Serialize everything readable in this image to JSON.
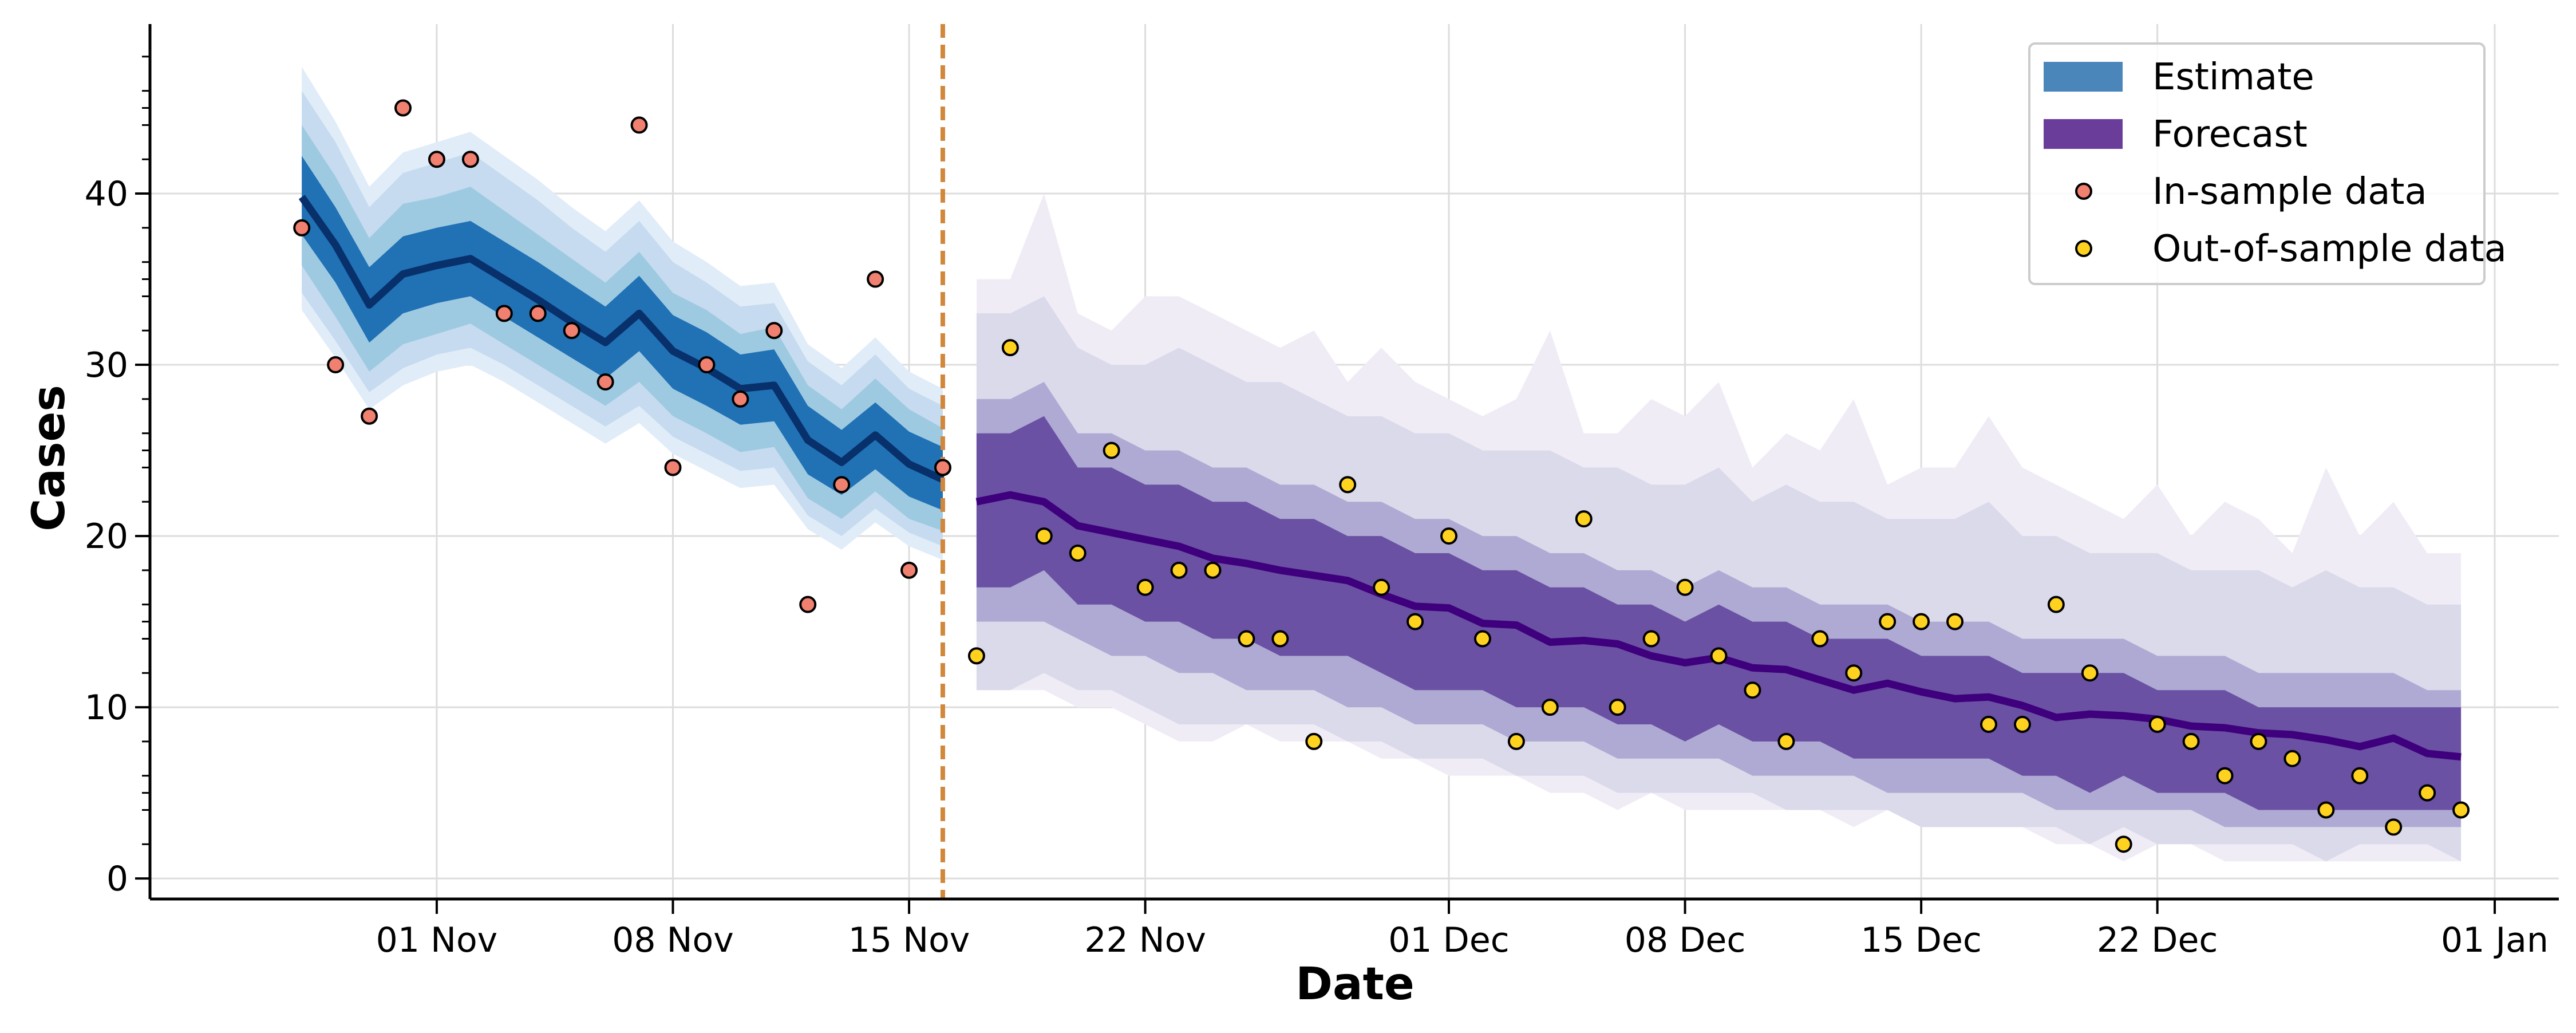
{
  "chart_data": {
    "type": "line",
    "title": "",
    "xlabel": "Date",
    "ylabel": "Cases",
    "ylim": [
      -1.2,
      49.9
    ],
    "xlim_days": [
      -8.5,
      62.9
    ],
    "x_reference_date": "2023-11-01",
    "x_ticks": [
      {
        "day": 0,
        "label": "01 Nov"
      },
      {
        "day": 7,
        "label": "08 Nov"
      },
      {
        "day": 14,
        "label": "15 Nov"
      },
      {
        "day": 21,
        "label": "22 Nov"
      },
      {
        "day": 30,
        "label": "01 Dec"
      },
      {
        "day": 37,
        "label": "08 Dec"
      },
      {
        "day": 44,
        "label": "15 Dec"
      },
      {
        "day": 51,
        "label": "22 Dec"
      },
      {
        "day": 61,
        "label": "01 Jan"
      }
    ],
    "y_ticks": [
      0,
      10,
      20,
      30,
      40
    ],
    "grid": true,
    "forecast_start_day": 15,
    "legend": {
      "position": "top-right",
      "entries": [
        {
          "label": "Estimate",
          "kind": "patch",
          "color": "#4a86ba"
        },
        {
          "label": "Forecast",
          "kind": "patch",
          "color": "#6a3d9a"
        },
        {
          "label": "In-sample data",
          "kind": "marker",
          "color": "#f08070"
        },
        {
          "label": "Out-of-sample data",
          "kind": "marker",
          "color": "#ffd21f"
        }
      ]
    },
    "estimate": {
      "name": "Estimate",
      "x": [
        -4,
        -3,
        -2,
        -1,
        0,
        1,
        2,
        3,
        4,
        5,
        6,
        7,
        8,
        9,
        10,
        11,
        12,
        13,
        14,
        15
      ],
      "median": [
        39.8,
        37.0,
        33.5,
        35.3,
        35.8,
        36.2,
        35.0,
        33.8,
        32.5,
        31.3,
        33.0,
        30.8,
        29.8,
        28.6,
        28.8,
        25.6,
        24.3,
        25.9,
        24.2,
        23.3
      ],
      "colors": [
        "#e0ecf8",
        "#c6dbef",
        "#9ecae1",
        "#2171b5"
      ],
      "bands": [
        {
          "lower": [
            33.2,
            30.4,
            27.4,
            28.8,
            29.6,
            30.0,
            29.0,
            27.8,
            26.6,
            25.4,
            26.6,
            24.8,
            23.8,
            22.8,
            23.0,
            20.4,
            19.2,
            20.8,
            19.4,
            18.6
          ],
          "upper": [
            47.4,
            44.2,
            40.4,
            42.4,
            43.0,
            43.6,
            42.2,
            40.8,
            39.2,
            37.8,
            39.6,
            37.2,
            36.0,
            34.6,
            34.8,
            31.2,
            29.8,
            31.6,
            29.6,
            28.6
          ]
        },
        {
          "lower": [
            34.2,
            31.4,
            28.4,
            29.8,
            30.6,
            31.0,
            30.0,
            28.8,
            27.6,
            26.4,
            27.6,
            25.8,
            24.8,
            23.8,
            24.0,
            21.2,
            20.0,
            21.6,
            20.2,
            19.4
          ],
          "upper": [
            46.0,
            43.0,
            39.2,
            41.2,
            41.8,
            42.4,
            41.0,
            39.6,
            38.0,
            36.6,
            38.4,
            36.0,
            34.8,
            33.4,
            33.6,
            30.2,
            28.8,
            30.6,
            28.6,
            27.6
          ]
        },
        {
          "lower": [
            35.8,
            32.8,
            29.6,
            31.2,
            31.8,
            32.4,
            31.2,
            30.0,
            28.8,
            27.6,
            29.0,
            27.0,
            26.0,
            24.9,
            25.2,
            22.2,
            21.0,
            22.6,
            21.0,
            20.3
          ],
          "upper": [
            44.0,
            41.0,
            37.4,
            39.4,
            39.8,
            40.4,
            39.0,
            37.6,
            36.2,
            34.8,
            36.6,
            34.2,
            33.2,
            31.8,
            32.2,
            28.8,
            27.4,
            29.2,
            27.4,
            26.3
          ]
        },
        {
          "lower": [
            37.6,
            34.8,
            31.3,
            33.0,
            33.6,
            34.0,
            32.8,
            31.6,
            30.4,
            29.2,
            30.8,
            28.6,
            27.6,
            26.5,
            26.7,
            23.6,
            22.4,
            23.9,
            22.3,
            21.5
          ],
          "upper": [
            42.2,
            39.2,
            35.7,
            37.5,
            38.0,
            38.4,
            37.2,
            36.0,
            34.7,
            33.4,
            35.2,
            32.9,
            31.9,
            30.6,
            30.9,
            27.6,
            26.2,
            27.8,
            26.1,
            25.2
          ]
        }
      ]
    },
    "forecast": {
      "name": "Forecast",
      "x": [
        16,
        17,
        18,
        19,
        20,
        21,
        22,
        23,
        24,
        25,
        26,
        27,
        28,
        29,
        30,
        31,
        32,
        33,
        34,
        35,
        36,
        37,
        38,
        39,
        40,
        41,
        42,
        43,
        44,
        45,
        46,
        47,
        48,
        49,
        50,
        51,
        52,
        53,
        54,
        55,
        56,
        57,
        58,
        59,
        60
      ],
      "median": [
        22.0,
        22.4,
        22.0,
        20.6,
        20.2,
        19.8,
        19.4,
        18.7,
        18.4,
        18.0,
        17.7,
        17.4,
        16.6,
        15.9,
        15.8,
        14.9,
        14.8,
        13.8,
        13.9,
        13.7,
        13.0,
        12.6,
        12.9,
        12.3,
        12.2,
        11.6,
        11.0,
        11.4,
        10.9,
        10.5,
        10.6,
        10.1,
        9.4,
        9.6,
        9.5,
        9.3,
        8.9,
        8.8,
        8.5,
        8.4,
        8.1,
        7.7,
        8.2,
        7.3,
        7.1
      ],
      "colors": [
        "#f0ecf6",
        "#dadaeb",
        "#aeaad3",
        "#6a51a3"
      ],
      "bands": [
        {
          "lower": [
            11.0,
            11.0,
            11.0,
            10.0,
            10.0,
            9.0,
            8.0,
            8.0,
            9.0,
            8.0,
            8.0,
            8.0,
            7.0,
            7.0,
            6.0,
            6.0,
            6.0,
            5.0,
            5.0,
            4.0,
            5.0,
            4.0,
            4.0,
            4.0,
            4.0,
            4.0,
            3.0,
            4.0,
            3.0,
            3.0,
            3.0,
            3.0,
            2.0,
            2.0,
            1.0,
            2.0,
            2.0,
            1.0,
            1.0,
            1.0,
            1.0,
            1.0,
            1.0,
            1.0,
            1.0
          ],
          "upper": [
            35.0,
            35.0,
            40.0,
            33.0,
            32.0,
            34.0,
            34.0,
            33.0,
            32.0,
            31.0,
            32.0,
            29.0,
            31.0,
            29.0,
            28.0,
            27.0,
            28.0,
            32.0,
            26.0,
            26.0,
            28.0,
            27.0,
            29.0,
            24.0,
            26.0,
            25.0,
            28.0,
            23.0,
            24.0,
            24.0,
            27.0,
            24.0,
            23.0,
            22.0,
            21.0,
            23.0,
            20.0,
            22.0,
            21.0,
            19.0,
            24.0,
            20.0,
            22.0,
            19.0,
            19.0
          ]
        },
        {
          "lower": [
            11.0,
            11.0,
            12.0,
            11.0,
            11.0,
            10.0,
            9.0,
            9.0,
            9.0,
            9.0,
            9.0,
            8.0,
            8.0,
            7.0,
            7.0,
            7.0,
            6.0,
            6.0,
            6.0,
            5.0,
            5.0,
            5.0,
            5.0,
            5.0,
            4.0,
            4.0,
            4.0,
            4.0,
            3.0,
            3.0,
            3.0,
            3.0,
            3.0,
            2.0,
            3.0,
            2.0,
            2.0,
            2.0,
            2.0,
            2.0,
            1.0,
            2.0,
            2.0,
            2.0,
            1.0
          ],
          "upper": [
            33.0,
            33.0,
            34.0,
            31.0,
            30.0,
            30.0,
            31.0,
            30.0,
            29.0,
            29.0,
            28.0,
            27.0,
            27.0,
            26.0,
            26.0,
            25.0,
            25.0,
            25.0,
            24.0,
            24.0,
            23.0,
            23.0,
            24.0,
            22.0,
            23.0,
            22.0,
            22.0,
            21.0,
            21.0,
            21.0,
            22.0,
            20.0,
            20.0,
            19.0,
            19.0,
            19.0,
            18.0,
            18.0,
            18.0,
            17.0,
            18.0,
            17.0,
            17.0,
            16.0,
            16.0
          ]
        },
        {
          "lower": [
            15.0,
            15.0,
            15.0,
            14.0,
            13.0,
            13.0,
            12.0,
            12.0,
            11.0,
            11.0,
            11.0,
            10.0,
            10.0,
            9.0,
            9.0,
            9.0,
            8.0,
            8.0,
            8.0,
            7.0,
            7.0,
            7.0,
            7.0,
            6.0,
            6.0,
            6.0,
            6.0,
            5.0,
            5.0,
            5.0,
            5.0,
            5.0,
            4.0,
            4.0,
            4.0,
            4.0,
            4.0,
            3.0,
            3.0,
            3.0,
            3.0,
            3.0,
            3.0,
            3.0,
            3.0
          ],
          "upper": [
            28.0,
            28.0,
            29.0,
            26.0,
            26.0,
            25.0,
            25.0,
            24.0,
            24.0,
            23.0,
            23.0,
            22.0,
            22.0,
            21.0,
            21.0,
            20.0,
            20.0,
            19.0,
            19.0,
            18.0,
            18.0,
            17.0,
            18.0,
            17.0,
            17.0,
            16.0,
            16.0,
            16.0,
            15.0,
            15.0,
            15.0,
            14.0,
            14.0,
            14.0,
            14.0,
            13.0,
            13.0,
            13.0,
            12.0,
            12.0,
            12.0,
            12.0,
            12.0,
            11.0,
            11.0
          ]
        },
        {
          "lower": [
            17.0,
            17.0,
            18.0,
            16.0,
            16.0,
            15.0,
            15.0,
            14.0,
            14.0,
            13.0,
            13.0,
            13.0,
            12.0,
            11.0,
            11.0,
            11.0,
            10.0,
            10.0,
            10.0,
            9.0,
            9.0,
            8.0,
            9.0,
            8.0,
            8.0,
            8.0,
            7.0,
            7.0,
            7.0,
            7.0,
            7.0,
            6.0,
            6.0,
            5.0,
            6.0,
            5.0,
            5.0,
            5.0,
            4.0,
            4.0,
            4.0,
            4.0,
            4.0,
            4.0,
            4.0
          ],
          "upper": [
            26.0,
            26.0,
            27.0,
            24.0,
            24.0,
            23.0,
            23.0,
            22.0,
            22.0,
            21.0,
            21.0,
            20.0,
            20.0,
            19.0,
            19.0,
            18.0,
            18.0,
            17.0,
            17.0,
            16.0,
            16.0,
            15.0,
            16.0,
            15.0,
            15.0,
            14.0,
            14.0,
            14.0,
            13.0,
            13.0,
            13.0,
            12.0,
            12.0,
            12.0,
            12.0,
            11.0,
            11.0,
            11.0,
            10.0,
            10.0,
            10.0,
            10.0,
            10.0,
            10.0,
            10.0
          ]
        }
      ]
    },
    "in_sample_data": {
      "name": "In-sample data",
      "x": [
        -4,
        -3,
        -2,
        -1,
        0,
        1,
        2,
        3,
        4,
        5,
        6,
        7,
        8,
        9,
        10,
        11,
        12,
        13,
        14,
        15
      ],
      "y": [
        38,
        30,
        27,
        45,
        42,
        42,
        33,
        33,
        32,
        29,
        44,
        24,
        30,
        28,
        32,
        16,
        23,
        35,
        18,
        24
      ]
    },
    "out_of_sample_data": {
      "name": "Out-of-sample data",
      "x": [
        16,
        17,
        18,
        19,
        20,
        21,
        22,
        23,
        24,
        25,
        26,
        27,
        28,
        29,
        30,
        31,
        32,
        33,
        34,
        35,
        36,
        37,
        38,
        39,
        40,
        41,
        42,
        43,
        44,
        45,
        46,
        47,
        48,
        49,
        50,
        51,
        52,
        53,
        54,
        55,
        56,
        57,
        58,
        59,
        60
      ],
      "y": [
        13,
        31,
        20,
        19,
        25,
        17,
        18,
        18,
        14,
        14,
        8,
        23,
        17,
        15,
        20,
        14,
        8,
        10,
        21,
        10,
        14,
        17,
        13,
        11,
        8,
        14,
        12,
        15,
        15,
        15,
        9,
        9,
        16,
        12,
        2,
        9,
        8,
        6,
        8,
        7,
        4,
        6,
        3,
        5,
        4
      ]
    },
    "style": {
      "estimate_line_color": "#08306b",
      "forecast_line_color": "#3f007d",
      "forecast_start_line_color": "#d2883b",
      "in_sample_marker_color": "#f08070",
      "out_sample_marker_color": "#ffd21f",
      "grid_color": "#dddddd"
    }
  }
}
